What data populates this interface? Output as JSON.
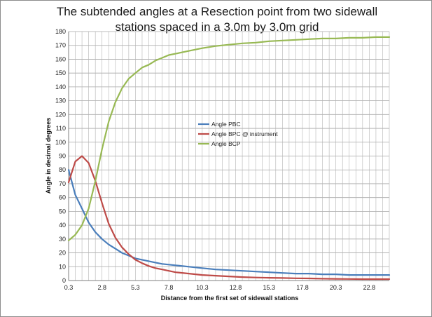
{
  "chart_data": {
    "type": "line",
    "title_line1": "The subtended angles at a Resection point from two sidewall",
    "title_line2": "stations spaced in a 3.0m by 3.0m grid",
    "xlabel": "Distance from the first set of sidewall stations",
    "ylabel": "Angle in decimal degrees",
    "xlim": [
      0.3,
      24.3
    ],
    "ylim": [
      0,
      180
    ],
    "x_ticks": [
      "0.3",
      "2.8",
      "5.3",
      "7.8",
      "10.3",
      "12.8",
      "15.3",
      "17.8",
      "20.3",
      "22.8"
    ],
    "y_ticks": [
      "0",
      "10",
      "20",
      "30",
      "40",
      "50",
      "60",
      "70",
      "80",
      "90",
      "100",
      "110",
      "120",
      "130",
      "140",
      "150",
      "160",
      "170",
      "180"
    ],
    "grid": true,
    "legend_position": "center",
    "series": [
      {
        "name": "Angle PBC",
        "color": "#4a7ebb",
        "x": [
          0.3,
          0.8,
          1.3,
          1.8,
          2.3,
          2.8,
          3.3,
          3.8,
          4.3,
          4.8,
          5.3,
          5.8,
          6.3,
          6.8,
          7.3,
          7.8,
          8.3,
          9.3,
          10.3,
          11.3,
          12.3,
          13.3,
          14.3,
          15.3,
          16.3,
          17.3,
          18.3,
          19.3,
          20.3,
          21.3,
          22.3,
          23.3,
          24.3
        ],
        "values": [
          80,
          62,
          52,
          42,
          35,
          30,
          26,
          23,
          20,
          18,
          16,
          15,
          14,
          13,
          12,
          11.5,
          11,
          10,
          9,
          8,
          7.5,
          7,
          6.5,
          6,
          5.5,
          5,
          5,
          4.5,
          4.5,
          4,
          4,
          4,
          4
        ]
      },
      {
        "name": "Angle BPC @ instrument",
        "color": "#be4b48",
        "x": [
          0.3,
          0.8,
          1.3,
          1.8,
          2.3,
          2.8,
          3.3,
          3.8,
          4.3,
          4.8,
          5.3,
          5.8,
          6.3,
          6.8,
          7.3,
          7.8,
          8.3,
          9.3,
          10.3,
          11.3,
          12.3,
          13.3,
          14.3,
          15.3,
          16.3,
          17.3,
          18.3,
          19.3,
          20.3,
          21.3,
          22.3,
          23.3,
          24.3
        ],
        "values": [
          71,
          86,
          90,
          85,
          72,
          56,
          41,
          31,
          24,
          19,
          15,
          12.5,
          10.5,
          9,
          8,
          7,
          6,
          5,
          4,
          3.5,
          3,
          2.5,
          2.2,
          2,
          1.8,
          1.6,
          1.5,
          1.3,
          1.2,
          1.1,
          1,
          1,
          1
        ]
      },
      {
        "name": "Angle BCP",
        "color": "#98b954",
        "x": [
          0.3,
          0.8,
          1.3,
          1.8,
          2.3,
          2.8,
          3.3,
          3.8,
          4.3,
          4.8,
          5.3,
          5.8,
          6.3,
          6.8,
          7.3,
          7.8,
          8.3,
          9.3,
          10.3,
          11.3,
          12.3,
          13.3,
          14.3,
          15.3,
          16.3,
          17.3,
          18.3,
          19.3,
          20.3,
          21.3,
          22.3,
          23.3,
          24.3
        ],
        "values": [
          29,
          33,
          40,
          52,
          72,
          95,
          115,
          129,
          139,
          146,
          150,
          154,
          156,
          159,
          161,
          163,
          164,
          166,
          168,
          169.5,
          170.5,
          171.5,
          172,
          173,
          173.5,
          174,
          174.5,
          175,
          175,
          175.5,
          175.5,
          176,
          176
        ]
      }
    ]
  }
}
